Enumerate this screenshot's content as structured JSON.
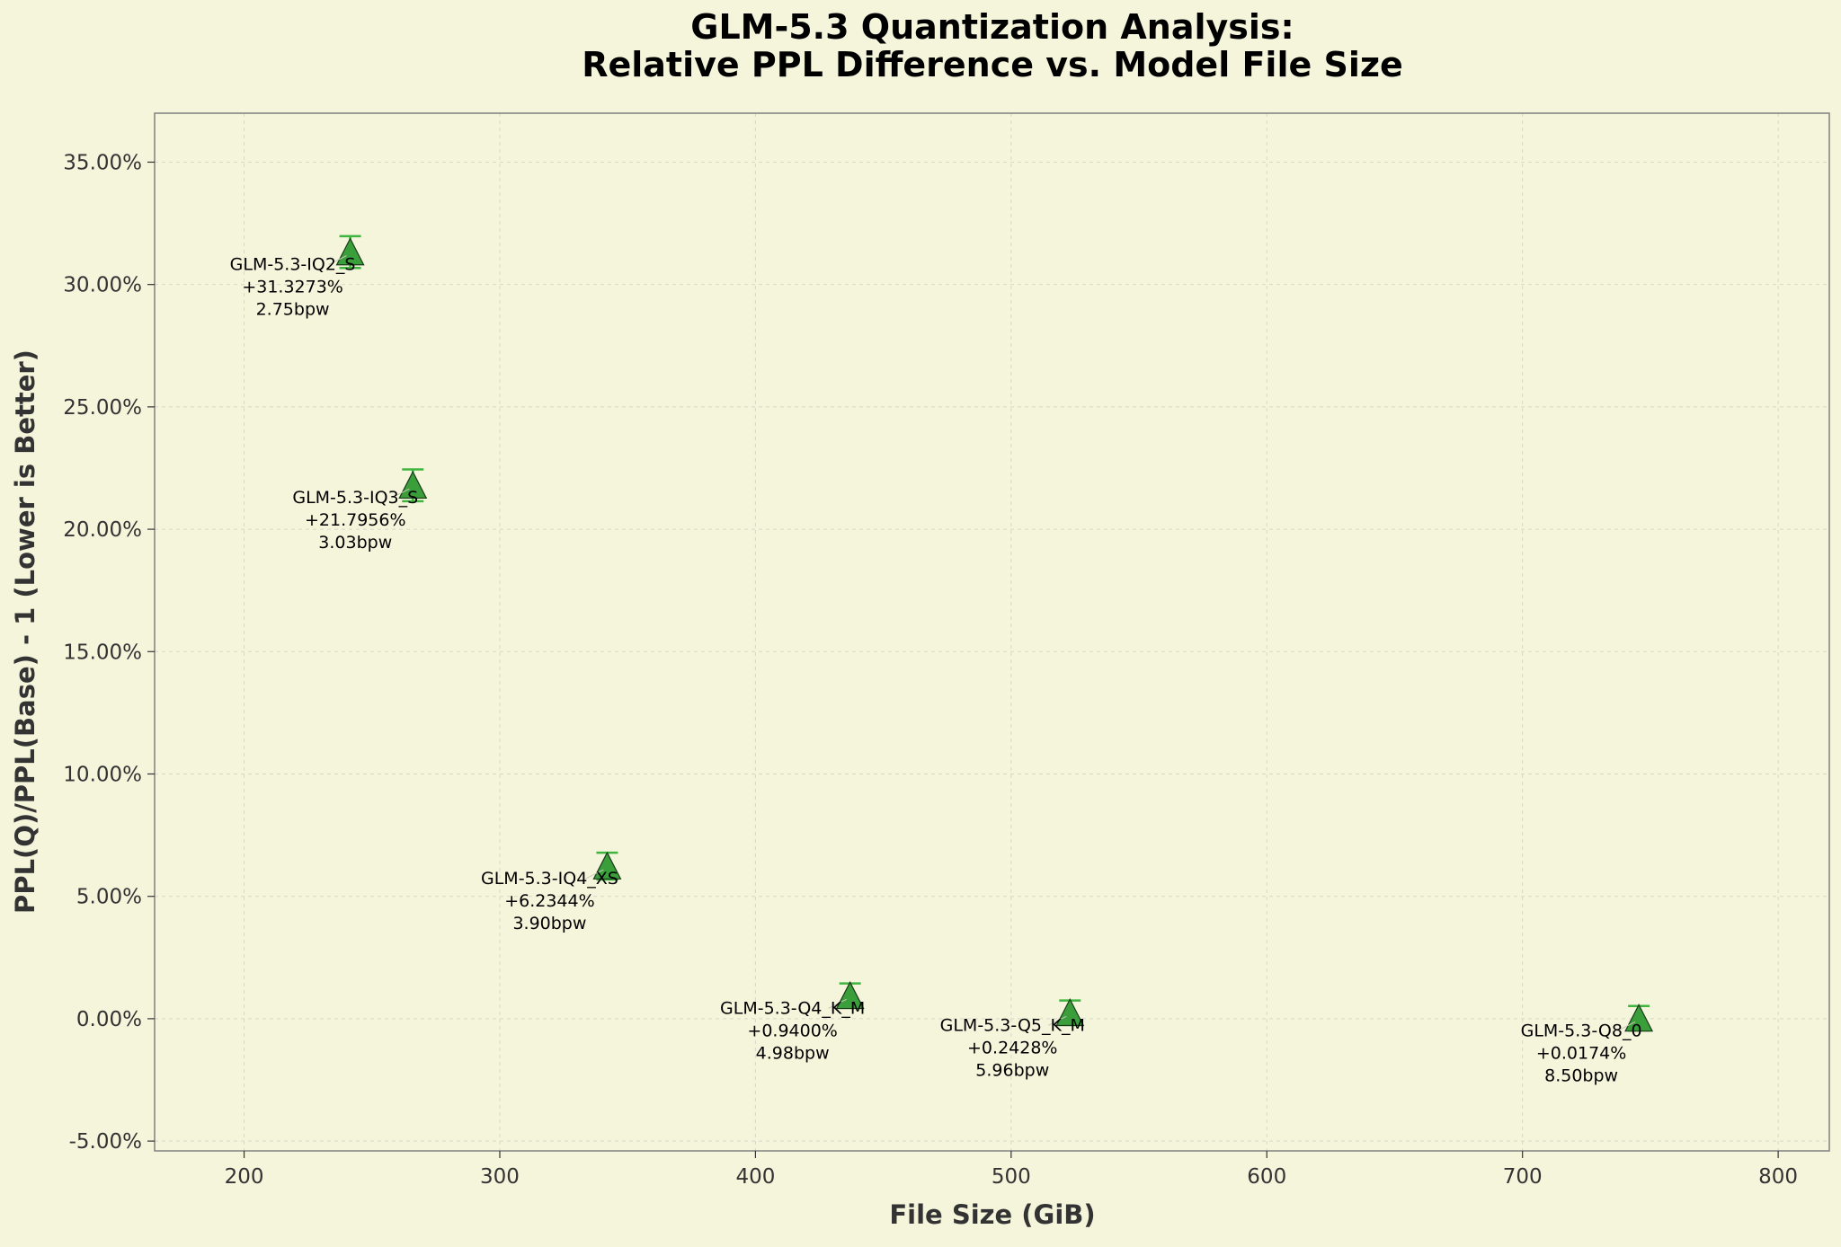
{
  "chart_data": {
    "type": "scatter",
    "title": "GLM-5.3 Quantization Analysis:",
    "subtitle": "Relative PPL Difference vs. Model File Size",
    "xlabel": "File Size (GiB)",
    "ylabel": "PPL(Q)/PPL(Base) - 1 (Lower is Better)",
    "xlim": [
      165,
      820
    ],
    "ylim": [
      -0.054,
      0.37
    ],
    "x_ticks": [
      200,
      300,
      400,
      500,
      600,
      700,
      800
    ],
    "x_tick_labels": [
      "200",
      "300",
      "400",
      "500",
      "600",
      "700",
      "800"
    ],
    "y_ticks": [
      -0.05,
      0.0,
      0.05,
      0.1,
      0.15,
      0.2,
      0.25,
      0.3,
      0.35
    ],
    "y_tick_labels": [
      "-5.00%",
      "0.00%",
      "5.00%",
      "10.00%",
      "15.00%",
      "20.00%",
      "25.00%",
      "30.00%",
      "35.00%"
    ],
    "grid": true,
    "marker_color": "#3a9e3a",
    "marker_edge_color": "#1a3a1a",
    "errorbar_color": "#3fb53f",
    "background_color": "#f5f5dc",
    "points": [
      {
        "name": "GLM-5.3-IQ2_S",
        "x": 241.5,
        "y": 0.313273,
        "y_err": 0.0065,
        "value_label": "+31.3273%",
        "bpw_label": "2.75bpw"
      },
      {
        "name": "GLM-5.3-IQ3_S",
        "x": 266,
        "y": 0.217956,
        "y_err": 0.0065,
        "value_label": "+21.7956%",
        "bpw_label": "3.03bpw"
      },
      {
        "name": "GLM-5.3-IQ4_XS",
        "x": 342,
        "y": 0.062344,
        "y_err": 0.0055,
        "value_label": "+6.2344%",
        "bpw_label": "3.90bpw"
      },
      {
        "name": "GLM-5.3-Q4_K_M",
        "x": 437,
        "y": 0.0094,
        "y_err": 0.005,
        "value_label": "+0.9400%",
        "bpw_label": "4.98bpw"
      },
      {
        "name": "GLM-5.3-Q5_K_M",
        "x": 523,
        "y": 0.002428,
        "y_err": 0.005,
        "value_label": "+0.2428%",
        "bpw_label": "5.96bpw"
      },
      {
        "name": "GLM-5.3-Q8_0",
        "x": 745.5,
        "y": 0.000174,
        "y_err": 0.005,
        "value_label": "+0.0174%",
        "bpw_label": "8.50bpw"
      }
    ]
  }
}
